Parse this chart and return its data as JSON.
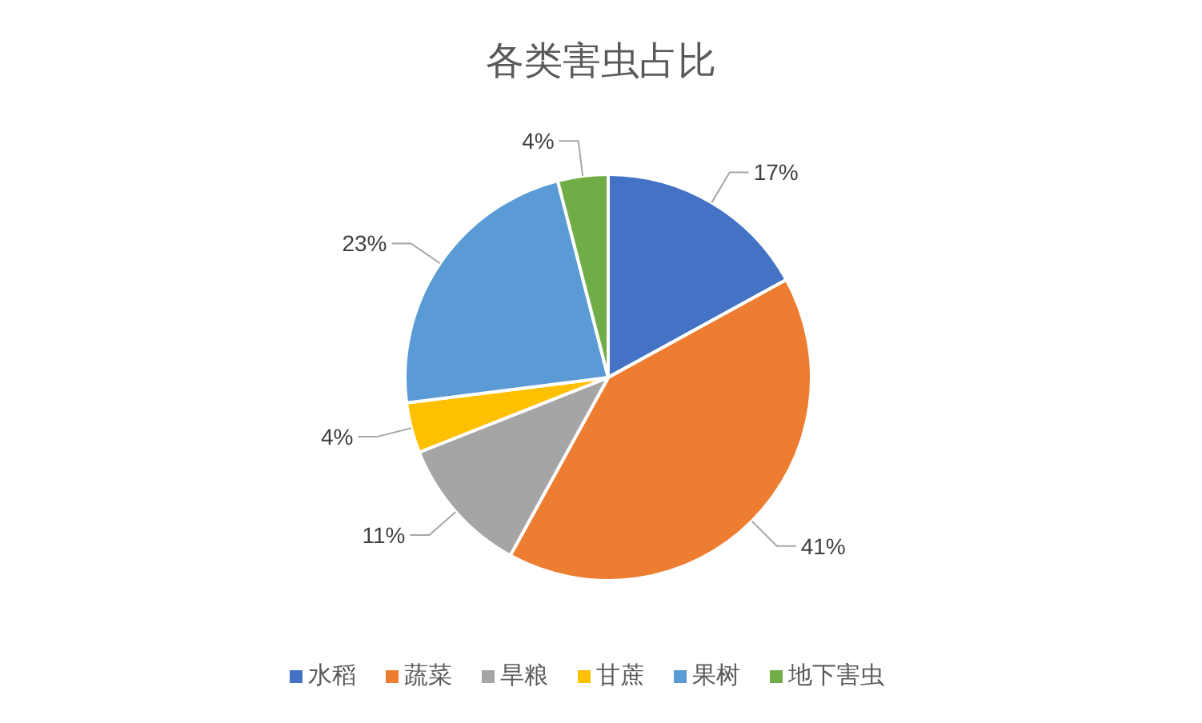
{
  "chart_data": {
    "type": "pie",
    "title": "各类害虫占比",
    "categories": [
      "水稻",
      "蔬菜",
      "旱粮",
      "甘蔗",
      "果树",
      "地下害虫"
    ],
    "values": [
      17,
      41,
      11,
      4,
      23,
      4
    ],
    "value_labels": [
      "17%",
      "41%",
      "11%",
      "4%",
      "23%",
      "4%"
    ],
    "colors": [
      "#4472c4",
      "#ed7d31",
      "#a5a5a5",
      "#ffc000",
      "#5b9bd5",
      "#70ad47"
    ],
    "legend": "bottom"
  }
}
